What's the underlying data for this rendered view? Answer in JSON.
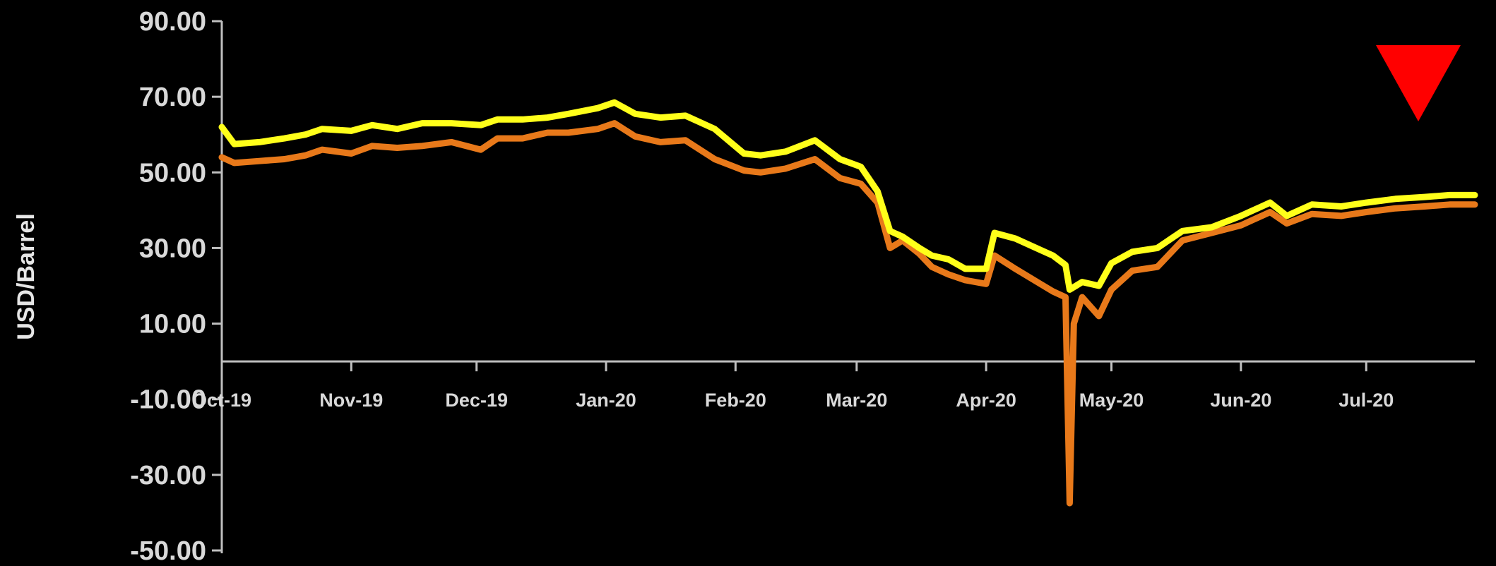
{
  "chart_data": {
    "type": "line",
    "title": "",
    "xlabel": "",
    "ylabel": "USD/Barrel",
    "ylim": [
      -50,
      90
    ],
    "yticks": [
      90,
      70,
      50,
      30,
      10,
      -10,
      -30,
      -50
    ],
    "ytick_labels": [
      "90.00",
      "70.00",
      "50.00",
      "30.00",
      "10.00",
      "-10.00",
      "-30.00",
      "-50.00"
    ],
    "xticks": [
      "Oct-19",
      "Nov-19",
      "Dec-19",
      "Jan-20",
      "Feb-20",
      "Mar-20",
      "Apr-20",
      "May-20",
      "Jun-20",
      "Jul-20"
    ],
    "xrange": [
      "2019-10-01",
      "2020-07-27"
    ],
    "grid": false,
    "legend": "none",
    "colors": {
      "background": "#000000",
      "series_upper": "#ffff1a",
      "series_lower": "#e8791a",
      "axis": "#bfbfbf",
      "marker": "#ff0000"
    },
    "annotation_icon": "red-down-arrow",
    "series": [
      {
        "color": "#ffff1a",
        "points": [
          [
            "2019-10-01",
            62
          ],
          [
            "2019-10-04",
            57.5
          ],
          [
            "2019-10-10",
            58
          ],
          [
            "2019-10-16",
            59
          ],
          [
            "2019-10-21",
            60
          ],
          [
            "2019-10-25",
            61.5
          ],
          [
            "2019-11-01",
            61
          ],
          [
            "2019-11-06",
            62.5
          ],
          [
            "2019-11-12",
            61.5
          ],
          [
            "2019-11-18",
            63
          ],
          [
            "2019-11-25",
            63
          ],
          [
            "2019-12-02",
            62.5
          ],
          [
            "2019-12-06",
            64
          ],
          [
            "2019-12-12",
            64
          ],
          [
            "2019-12-18",
            64.5
          ],
          [
            "2019-12-23",
            65.5
          ],
          [
            "2019-12-30",
            67
          ],
          [
            "2020-01-03",
            68.5
          ],
          [
            "2020-01-08",
            65.5
          ],
          [
            "2020-01-14",
            64.5
          ],
          [
            "2020-01-20",
            65
          ],
          [
            "2020-01-27",
            61.5
          ],
          [
            "2020-02-03",
            55
          ],
          [
            "2020-02-07",
            54.5
          ],
          [
            "2020-02-13",
            55.5
          ],
          [
            "2020-02-20",
            58.5
          ],
          [
            "2020-02-26",
            53.5
          ],
          [
            "2020-03-02",
            51.5
          ],
          [
            "2020-03-06",
            45
          ],
          [
            "2020-03-09",
            34.5
          ],
          [
            "2020-03-12",
            33
          ],
          [
            "2020-03-16",
            30
          ],
          [
            "2020-03-19",
            28
          ],
          [
            "2020-03-23",
            27
          ],
          [
            "2020-03-27",
            24.5
          ],
          [
            "2020-04-01",
            24.5
          ],
          [
            "2020-04-03",
            34
          ],
          [
            "2020-04-08",
            32.5
          ],
          [
            "2020-04-14",
            29.5
          ],
          [
            "2020-04-17",
            28
          ],
          [
            "2020-04-20",
            25.5
          ],
          [
            "2020-04-21",
            19
          ],
          [
            "2020-04-24",
            21
          ],
          [
            "2020-04-28",
            20
          ],
          [
            "2020-05-01",
            26
          ],
          [
            "2020-05-06",
            29
          ],
          [
            "2020-05-12",
            30
          ],
          [
            "2020-05-18",
            34.5
          ],
          [
            "2020-05-25",
            35.5
          ],
          [
            "2020-06-01",
            38.5
          ],
          [
            "2020-06-08",
            42
          ],
          [
            "2020-06-12",
            38.5
          ],
          [
            "2020-06-18",
            41.5
          ],
          [
            "2020-06-25",
            41
          ],
          [
            "2020-07-01",
            42
          ],
          [
            "2020-07-08",
            43
          ],
          [
            "2020-07-15",
            43.5
          ],
          [
            "2020-07-21",
            44
          ],
          [
            "2020-07-27",
            44
          ]
        ]
      },
      {
        "color": "#e8791a",
        "points": [
          [
            "2019-10-01",
            54
          ],
          [
            "2019-10-04",
            52.5
          ],
          [
            "2019-10-10",
            53
          ],
          [
            "2019-10-16",
            53.5
          ],
          [
            "2019-10-21",
            54.5
          ],
          [
            "2019-10-25",
            56
          ],
          [
            "2019-11-01",
            55
          ],
          [
            "2019-11-06",
            57
          ],
          [
            "2019-11-12",
            56.5
          ],
          [
            "2019-11-18",
            57
          ],
          [
            "2019-11-25",
            58
          ],
          [
            "2019-12-02",
            56
          ],
          [
            "2019-12-06",
            59
          ],
          [
            "2019-12-12",
            59
          ],
          [
            "2019-12-18",
            60.5
          ],
          [
            "2019-12-23",
            60.5
          ],
          [
            "2019-12-30",
            61.5
          ],
          [
            "2020-01-03",
            63
          ],
          [
            "2020-01-08",
            59.5
          ],
          [
            "2020-01-14",
            58
          ],
          [
            "2020-01-20",
            58.5
          ],
          [
            "2020-01-27",
            53.5
          ],
          [
            "2020-02-03",
            50.5
          ],
          [
            "2020-02-07",
            50
          ],
          [
            "2020-02-13",
            51
          ],
          [
            "2020-02-20",
            53.5
          ],
          [
            "2020-02-26",
            48.5
          ],
          [
            "2020-03-02",
            47
          ],
          [
            "2020-03-06",
            42
          ],
          [
            "2020-03-09",
            30
          ],
          [
            "2020-03-12",
            32
          ],
          [
            "2020-03-16",
            28.5
          ],
          [
            "2020-03-19",
            25
          ],
          [
            "2020-03-23",
            23
          ],
          [
            "2020-03-27",
            21.5
          ],
          [
            "2020-04-01",
            20.5
          ],
          [
            "2020-04-03",
            28
          ],
          [
            "2020-04-08",
            24.5
          ],
          [
            "2020-04-14",
            20.5
          ],
          [
            "2020-04-17",
            18.5
          ],
          [
            "2020-04-20",
            17
          ],
          [
            "2020-04-21",
            -37.5
          ],
          [
            "2020-04-22",
            10
          ],
          [
            "2020-04-24",
            17
          ],
          [
            "2020-04-28",
            12
          ],
          [
            "2020-05-01",
            19
          ],
          [
            "2020-05-06",
            24
          ],
          [
            "2020-05-12",
            25
          ],
          [
            "2020-05-18",
            32
          ],
          [
            "2020-05-25",
            34
          ],
          [
            "2020-06-01",
            36
          ],
          [
            "2020-06-08",
            39.5
          ],
          [
            "2020-06-12",
            36.5
          ],
          [
            "2020-06-18",
            39
          ],
          [
            "2020-06-25",
            38.5
          ],
          [
            "2020-07-01",
            39.5
          ],
          [
            "2020-07-08",
            40.5
          ],
          [
            "2020-07-15",
            41
          ],
          [
            "2020-07-21",
            41.5
          ],
          [
            "2020-07-27",
            41.5
          ]
        ]
      }
    ]
  }
}
